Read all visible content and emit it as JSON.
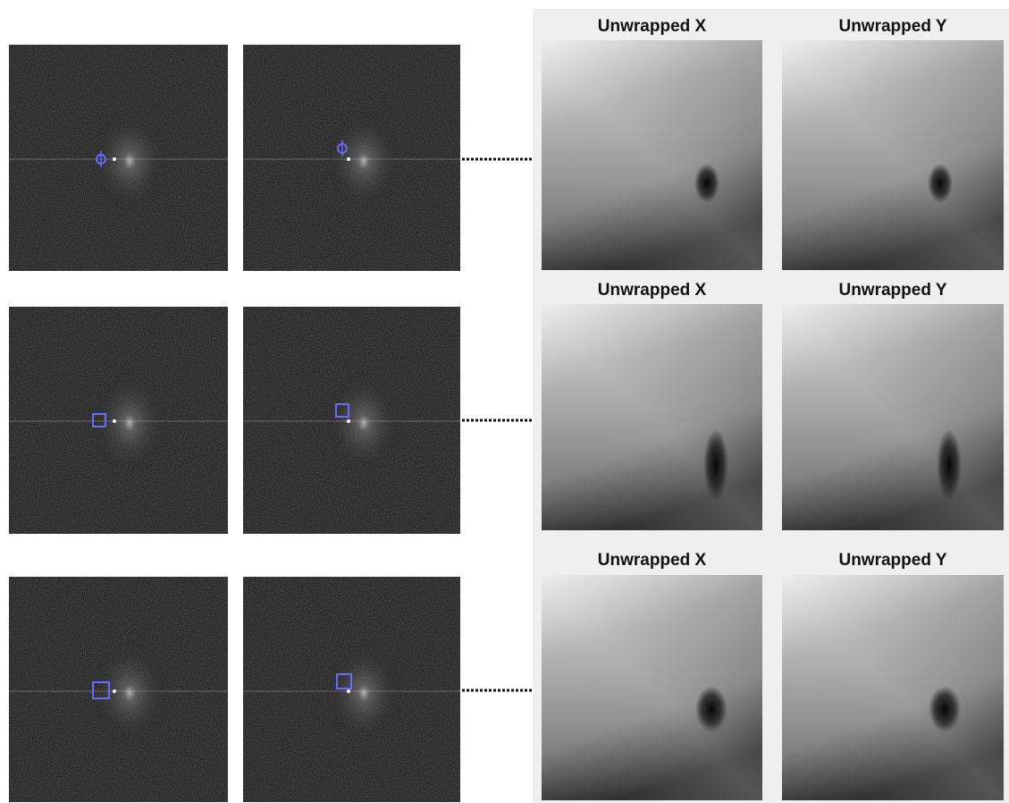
{
  "rows": [
    {
      "labels": [
        "Unwrapped X",
        "Unwrapped Y"
      ]
    },
    {
      "labels": [
        "Unwrapped X",
        "Unwrapped Y"
      ]
    },
    {
      "labels": [
        "Unwrapped X",
        "Unwrapped Y"
      ]
    }
  ]
}
